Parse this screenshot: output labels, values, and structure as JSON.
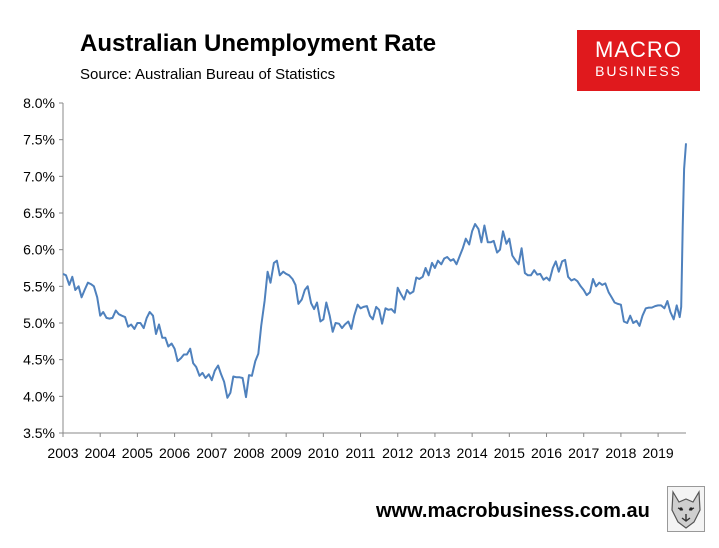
{
  "header": {
    "title": "Australian Unemployment Rate",
    "subtitle": "Source: Australian Bureau of Statistics"
  },
  "logo": {
    "line1": "MACRO",
    "line2": "BUSINESS",
    "color": "#e0191d"
  },
  "footer": {
    "url": "www.macrobusiness.com.au",
    "mascot_icon": "wolf-head-icon"
  },
  "chart_data": {
    "type": "line",
    "title": "Australian Unemployment Rate",
    "subtitle": "Source: Australian Bureau of Statistics",
    "xlabel": "",
    "ylabel": "",
    "ylim": [
      3.5,
      8.0
    ],
    "xlim": [
      2003.0,
      2019.75
    ],
    "yticks": [
      "3.5%",
      "4.0%",
      "4.5%",
      "5.0%",
      "5.5%",
      "6.0%",
      "6.5%",
      "7.0%",
      "7.5%",
      "8.0%"
    ],
    "xticks": [
      "2003",
      "2004",
      "2005",
      "2006",
      "2007",
      "2008",
      "2009",
      "2010",
      "2011",
      "2012",
      "2013",
      "2014",
      "2015",
      "2016",
      "2017",
      "2018",
      "2019"
    ],
    "grid": false,
    "legend": "none",
    "series": [
      {
        "color": "#4f81bd",
        "points": [
          [
            2003.0,
            5.67
          ],
          [
            2003.08,
            5.65
          ],
          [
            2003.17,
            5.52
          ],
          [
            2003.25,
            5.63
          ],
          [
            2003.33,
            5.45
          ],
          [
            2003.42,
            5.5
          ],
          [
            2003.5,
            5.35
          ],
          [
            2003.58,
            5.45
          ],
          [
            2003.67,
            5.55
          ],
          [
            2003.75,
            5.53
          ],
          [
            2003.83,
            5.5
          ],
          [
            2003.92,
            5.35
          ],
          [
            2004.0,
            5.1
          ],
          [
            2004.08,
            5.15
          ],
          [
            2004.17,
            5.07
          ],
          [
            2004.25,
            5.06
          ],
          [
            2004.33,
            5.07
          ],
          [
            2004.42,
            5.17
          ],
          [
            2004.5,
            5.12
          ],
          [
            2004.58,
            5.1
          ],
          [
            2004.67,
            5.08
          ],
          [
            2004.75,
            4.95
          ],
          [
            2004.83,
            4.98
          ],
          [
            2004.92,
            4.92
          ],
          [
            2005.0,
            5.0
          ],
          [
            2005.08,
            5.0
          ],
          [
            2005.17,
            4.93
          ],
          [
            2005.25,
            5.07
          ],
          [
            2005.33,
            5.15
          ],
          [
            2005.42,
            5.1
          ],
          [
            2005.5,
            4.85
          ],
          [
            2005.58,
            4.98
          ],
          [
            2005.67,
            4.8
          ],
          [
            2005.75,
            4.8
          ],
          [
            2005.83,
            4.68
          ],
          [
            2005.92,
            4.72
          ],
          [
            2006.0,
            4.65
          ],
          [
            2006.08,
            4.48
          ],
          [
            2006.17,
            4.52
          ],
          [
            2006.25,
            4.57
          ],
          [
            2006.33,
            4.57
          ],
          [
            2006.42,
            4.65
          ],
          [
            2006.5,
            4.45
          ],
          [
            2006.58,
            4.4
          ],
          [
            2006.67,
            4.28
          ],
          [
            2006.75,
            4.32
          ],
          [
            2006.83,
            4.25
          ],
          [
            2006.92,
            4.3
          ],
          [
            2007.0,
            4.22
          ],
          [
            2007.08,
            4.35
          ],
          [
            2007.17,
            4.42
          ],
          [
            2007.25,
            4.3
          ],
          [
            2007.33,
            4.2
          ],
          [
            2007.42,
            3.98
          ],
          [
            2007.5,
            4.05
          ],
          [
            2007.58,
            4.27
          ],
          [
            2007.67,
            4.26
          ],
          [
            2007.75,
            4.26
          ],
          [
            2007.83,
            4.25
          ],
          [
            2007.92,
            3.99
          ],
          [
            2008.0,
            4.29
          ],
          [
            2008.08,
            4.28
          ],
          [
            2008.17,
            4.48
          ],
          [
            2008.25,
            4.58
          ],
          [
            2008.33,
            4.96
          ],
          [
            2008.42,
            5.3
          ],
          [
            2008.5,
            5.7
          ],
          [
            2008.58,
            5.55
          ],
          [
            2008.67,
            5.82
          ],
          [
            2008.75,
            5.85
          ],
          [
            2008.83,
            5.65
          ],
          [
            2008.92,
            5.7
          ],
          [
            2009.0,
            5.67
          ],
          [
            2009.08,
            5.65
          ],
          [
            2009.17,
            5.6
          ],
          [
            2009.25,
            5.52
          ],
          [
            2009.33,
            5.26
          ],
          [
            2009.42,
            5.32
          ],
          [
            2009.5,
            5.45
          ],
          [
            2009.58,
            5.5
          ],
          [
            2009.67,
            5.27
          ],
          [
            2009.75,
            5.19
          ],
          [
            2009.83,
            5.28
          ],
          [
            2009.92,
            5.02
          ],
          [
            2010.0,
            5.05
          ],
          [
            2010.08,
            5.28
          ],
          [
            2010.17,
            5.1
          ],
          [
            2010.25,
            4.88
          ],
          [
            2010.33,
            5.0
          ],
          [
            2010.42,
            4.99
          ],
          [
            2010.5,
            4.93
          ],
          [
            2010.58,
            4.98
          ],
          [
            2010.67,
            5.02
          ],
          [
            2010.75,
            4.92
          ],
          [
            2010.83,
            5.1
          ],
          [
            2010.92,
            5.25
          ],
          [
            2011.0,
            5.2
          ],
          [
            2011.08,
            5.22
          ],
          [
            2011.17,
            5.23
          ],
          [
            2011.25,
            5.1
          ],
          [
            2011.33,
            5.05
          ],
          [
            2011.42,
            5.22
          ],
          [
            2011.5,
            5.18
          ],
          [
            2011.58,
            4.99
          ],
          [
            2011.67,
            5.2
          ],
          [
            2011.75,
            5.18
          ],
          [
            2011.83,
            5.19
          ],
          [
            2011.92,
            5.14
          ],
          [
            2012.0,
            5.48
          ],
          [
            2012.08,
            5.4
          ],
          [
            2012.17,
            5.32
          ],
          [
            2012.25,
            5.45
          ],
          [
            2012.33,
            5.4
          ],
          [
            2012.42,
            5.43
          ],
          [
            2012.5,
            5.62
          ],
          [
            2012.58,
            5.6
          ],
          [
            2012.67,
            5.63
          ],
          [
            2012.75,
            5.75
          ],
          [
            2012.83,
            5.65
          ],
          [
            2012.92,
            5.82
          ],
          [
            2013.0,
            5.75
          ],
          [
            2013.08,
            5.85
          ],
          [
            2013.17,
            5.8
          ],
          [
            2013.25,
            5.88
          ],
          [
            2013.33,
            5.9
          ],
          [
            2013.42,
            5.85
          ],
          [
            2013.5,
            5.87
          ],
          [
            2013.58,
            5.8
          ],
          [
            2013.67,
            5.92
          ],
          [
            2013.75,
            6.02
          ],
          [
            2013.83,
            6.15
          ],
          [
            2013.92,
            6.07
          ],
          [
            2014.0,
            6.25
          ],
          [
            2014.08,
            6.35
          ],
          [
            2014.17,
            6.28
          ],
          [
            2014.25,
            6.1
          ],
          [
            2014.33,
            6.33
          ],
          [
            2014.42,
            6.1
          ],
          [
            2014.5,
            6.1
          ],
          [
            2014.58,
            6.12
          ],
          [
            2014.67,
            5.96
          ],
          [
            2014.75,
            6.0
          ],
          [
            2014.83,
            6.25
          ],
          [
            2014.92,
            6.08
          ],
          [
            2015.0,
            6.15
          ],
          [
            2015.08,
            5.92
          ],
          [
            2015.17,
            5.85
          ],
          [
            2015.25,
            5.8
          ],
          [
            2015.33,
            6.02
          ],
          [
            2015.42,
            5.68
          ],
          [
            2015.5,
            5.65
          ],
          [
            2015.58,
            5.65
          ],
          [
            2015.67,
            5.72
          ],
          [
            2015.75,
            5.66
          ],
          [
            2015.83,
            5.67
          ],
          [
            2015.92,
            5.59
          ],
          [
            2016.0,
            5.62
          ],
          [
            2016.08,
            5.58
          ],
          [
            2016.17,
            5.75
          ],
          [
            2016.25,
            5.84
          ],
          [
            2016.33,
            5.7
          ],
          [
            2016.42,
            5.84
          ],
          [
            2016.5,
            5.86
          ],
          [
            2016.58,
            5.63
          ],
          [
            2016.67,
            5.58
          ],
          [
            2016.75,
            5.6
          ],
          [
            2016.83,
            5.57
          ],
          [
            2016.92,
            5.5
          ],
          [
            2017.0,
            5.45
          ],
          [
            2017.08,
            5.38
          ],
          [
            2017.17,
            5.42
          ],
          [
            2017.25,
            5.6
          ],
          [
            2017.33,
            5.5
          ],
          [
            2017.42,
            5.55
          ],
          [
            2017.5,
            5.52
          ],
          [
            2017.58,
            5.54
          ],
          [
            2017.67,
            5.42
          ],
          [
            2017.75,
            5.35
          ],
          [
            2017.83,
            5.28
          ],
          [
            2017.92,
            5.26
          ],
          [
            2018.0,
            5.25
          ],
          [
            2018.08,
            5.02
          ],
          [
            2018.17,
            5.0
          ],
          [
            2018.25,
            5.1
          ],
          [
            2018.33,
            5.0
          ],
          [
            2018.42,
            5.03
          ],
          [
            2018.5,
            4.96
          ],
          [
            2018.58,
            5.1
          ],
          [
            2018.67,
            5.2
          ],
          [
            2018.75,
            5.21
          ],
          [
            2018.83,
            5.21
          ],
          [
            2018.92,
            5.23
          ],
          [
            2019.0,
            5.24
          ],
          [
            2019.08,
            5.24
          ],
          [
            2019.17,
            5.2
          ],
          [
            2019.25,
            5.3
          ],
          [
            2019.33,
            5.15
          ],
          [
            2019.42,
            5.05
          ],
          [
            2019.5,
            5.24
          ],
          [
            2019.58,
            5.08
          ],
          [
            2019.62,
            5.22
          ],
          [
            2019.66,
            6.3
          ],
          [
            2019.7,
            7.1
          ],
          [
            2019.75,
            7.45
          ]
        ]
      }
    ]
  }
}
